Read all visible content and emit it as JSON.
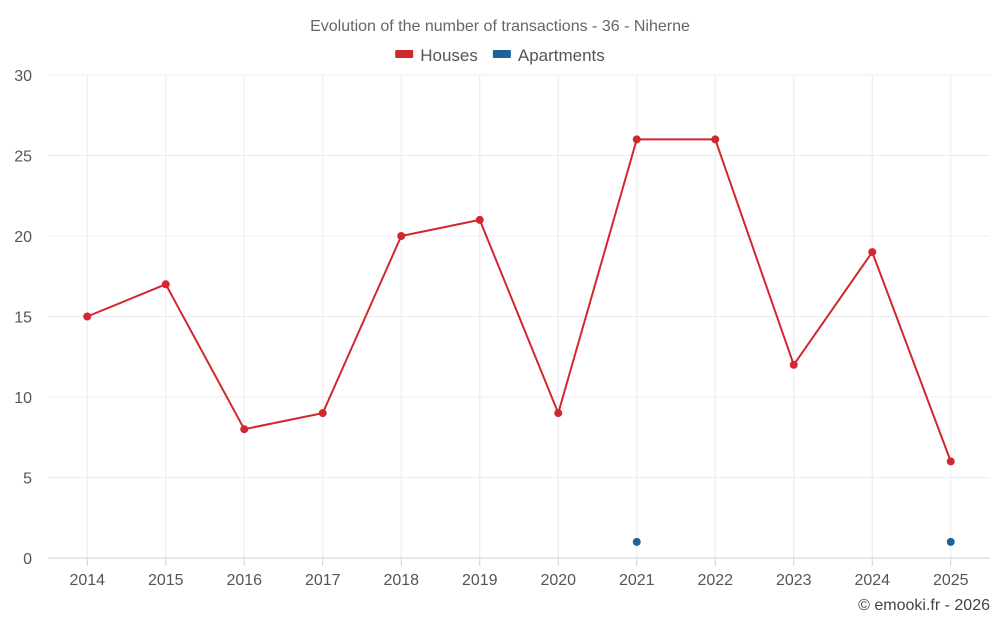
{
  "chart_data": {
    "type": "line",
    "title": "Evolution of the number of transactions - 36 - Niherne",
    "categories": [
      "2014",
      "2015",
      "2016",
      "2017",
      "2018",
      "2019",
      "2020",
      "2021",
      "2022",
      "2023",
      "2024",
      "2025"
    ],
    "series": [
      {
        "name": "Houses",
        "color": "#d0282e",
        "values": [
          15,
          17,
          8,
          9,
          20,
          21,
          9,
          26,
          26,
          12,
          19,
          6
        ]
      },
      {
        "name": "Apartments",
        "color": "#1a6496",
        "values": [
          null,
          null,
          null,
          null,
          null,
          null,
          null,
          1,
          null,
          null,
          null,
          1
        ]
      }
    ],
    "ylim": [
      0,
      30
    ],
    "yticks": [
      0,
      5,
      10,
      15,
      20,
      25,
      30
    ],
    "grid": true,
    "legend_position": "top-center",
    "credit": "© emooki.fr - 2026"
  }
}
